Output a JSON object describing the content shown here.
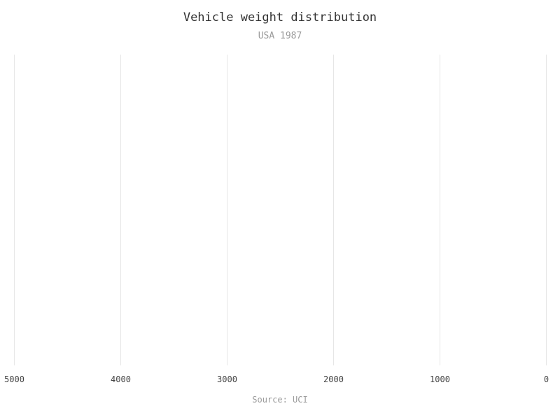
{
  "chart_data": {
    "type": "bar",
    "title": "Vehicle weight distribution",
    "subtitle": "USA 1987",
    "source": "Source: UCI",
    "xlabel": "",
    "ylabel": "",
    "xlim": [
      5000,
      0
    ],
    "x_ticks": [
      "5000",
      "4000",
      "3000",
      "2000",
      "1000",
      "0"
    ],
    "x_tick_values": [
      5000,
      4000,
      3000,
      2000,
      1000,
      0
    ],
    "categories": [],
    "values": [],
    "grid": true,
    "legend": "none"
  },
  "colors": {
    "grid": "#e6e6e6",
    "title": "#333333",
    "muted": "#9a9a9a",
    "tick": "#444444"
  }
}
